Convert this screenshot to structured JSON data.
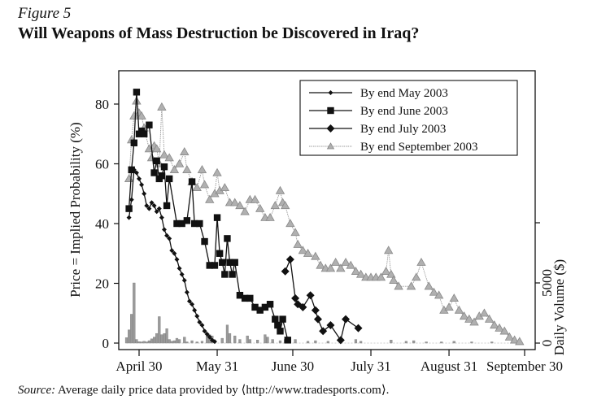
{
  "figure_label": "Figure 5",
  "title": "Will Weapons of Mass Destruction be Discovered in Iraq?",
  "source": {
    "prefix": "Source:",
    "text": " Average daily price data provided by ⟨http://www.tradesports.com⟩."
  },
  "chart_data": {
    "type": "line",
    "title": "Will Weapons of Mass Destruction be Discovered in Iraq?",
    "xlabel": "",
    "ylabel": "Price = Implied Probability (%)",
    "y2label": "Daily Volume ($)",
    "x_unit": "days since April 30, 2003",
    "x_ticks": [
      {
        "day": 0,
        "label": "April 30"
      },
      {
        "day": 31,
        "label": "May 31"
      },
      {
        "day": 61,
        "label": "June 30"
      },
      {
        "day": 92,
        "label": "July 31"
      },
      {
        "day": 123,
        "label": "August 31"
      },
      {
        "day": 153,
        "label": "September 30"
      }
    ],
    "xlim": [
      -8,
      158
    ],
    "y_ticks": [
      0,
      20,
      40,
      60,
      80
    ],
    "ylim": [
      -3,
      92
    ],
    "y2_ticks": [
      {
        "value": 0,
        "label": "0"
      },
      {
        "value": 5000,
        "label": "5000"
      }
    ],
    "y2lim": [
      -700,
      12500
    ],
    "grid": false,
    "legend_position": "top-right",
    "series": [
      {
        "name": "By end May 2003",
        "marker": "small-diamond",
        "color": "#111111",
        "points": [
          [
            -4,
            42
          ],
          [
            -3,
            48
          ],
          [
            -2,
            58
          ],
          [
            -1,
            57
          ],
          [
            0,
            55
          ],
          [
            1,
            53
          ],
          [
            2,
            50
          ],
          [
            3,
            46
          ],
          [
            4,
            45
          ],
          [
            5,
            47
          ],
          [
            6,
            46
          ],
          [
            7,
            44
          ],
          [
            8,
            45
          ],
          [
            9,
            42
          ],
          [
            10,
            38
          ],
          [
            11,
            36
          ],
          [
            12,
            35
          ],
          [
            13,
            31
          ],
          [
            14,
            30
          ],
          [
            15,
            28
          ],
          [
            16,
            25
          ],
          [
            17,
            23
          ],
          [
            18,
            21
          ],
          [
            19,
            17
          ],
          [
            20,
            14
          ],
          [
            21,
            13
          ],
          [
            22,
            11
          ],
          [
            23,
            9
          ],
          [
            24,
            7
          ],
          [
            25,
            6
          ],
          [
            26,
            4
          ],
          [
            27,
            3
          ],
          [
            28,
            2
          ],
          [
            29,
            1
          ],
          [
            30,
            0.5
          ]
        ]
      },
      {
        "name": "By end June 2003",
        "marker": "square",
        "color": "#111111",
        "points": [
          [
            -4,
            45
          ],
          [
            -3,
            58
          ],
          [
            -2,
            67
          ],
          [
            -1,
            84
          ],
          [
            0,
            70
          ],
          [
            1,
            71
          ],
          [
            2,
            70
          ],
          [
            4,
            73
          ],
          [
            6,
            57
          ],
          [
            7,
            61
          ],
          [
            8,
            55
          ],
          [
            9,
            56
          ],
          [
            10,
            59
          ],
          [
            11,
            46
          ],
          [
            12,
            55
          ],
          [
            15,
            40
          ],
          [
            17,
            40
          ],
          [
            19,
            41
          ],
          [
            21,
            54
          ],
          [
            22,
            40
          ],
          [
            24,
            40
          ],
          [
            26,
            34
          ],
          [
            28,
            26
          ],
          [
            30,
            26
          ],
          [
            31,
            42
          ],
          [
            32,
            30
          ],
          [
            33,
            27
          ],
          [
            34,
            23
          ],
          [
            35,
            35
          ],
          [
            36,
            27
          ],
          [
            37,
            23
          ],
          [
            38,
            27
          ],
          [
            40,
            16
          ],
          [
            42,
            15
          ],
          [
            44,
            15
          ],
          [
            46,
            12
          ],
          [
            48,
            11
          ],
          [
            50,
            12
          ],
          [
            52,
            13
          ],
          [
            54,
            8
          ],
          [
            55,
            6
          ],
          [
            56,
            4
          ],
          [
            57,
            8
          ],
          [
            59,
            1
          ]
        ]
      },
      {
        "name": "By end July 2003",
        "marker": "diamond",
        "color": "#111111",
        "points": [
          [
            58,
            24
          ],
          [
            60,
            28
          ],
          [
            62,
            15
          ],
          [
            63,
            13
          ],
          [
            65,
            12
          ],
          [
            68,
            16
          ],
          [
            70,
            11
          ],
          [
            71,
            8
          ],
          [
            73,
            4
          ],
          [
            76,
            6
          ],
          [
            80,
            1
          ],
          [
            82,
            8
          ],
          [
            87,
            5
          ]
        ]
      },
      {
        "name": "By end September 2003",
        "marker": "triangle",
        "color": "#9a9a9a",
        "points": [
          [
            -4,
            55
          ],
          [
            -3,
            68
          ],
          [
            -2,
            76
          ],
          [
            -1,
            81
          ],
          [
            0,
            77
          ],
          [
            1,
            76
          ],
          [
            2,
            72
          ],
          [
            4,
            65
          ],
          [
            5,
            62
          ],
          [
            6,
            66
          ],
          [
            7,
            65
          ],
          [
            8,
            60
          ],
          [
            9,
            79
          ],
          [
            10,
            63
          ],
          [
            12,
            62
          ],
          [
            14,
            58
          ],
          [
            16,
            60
          ],
          [
            18,
            64
          ],
          [
            19,
            58
          ],
          [
            21,
            54
          ],
          [
            23,
            52
          ],
          [
            25,
            58
          ],
          [
            26,
            53
          ],
          [
            28,
            48
          ],
          [
            30,
            50
          ],
          [
            31,
            57
          ],
          [
            32,
            51
          ],
          [
            34,
            52
          ],
          [
            36,
            47
          ],
          [
            38,
            47
          ],
          [
            40,
            46
          ],
          [
            42,
            44
          ],
          [
            44,
            48
          ],
          [
            46,
            48
          ],
          [
            48,
            45
          ],
          [
            50,
            42
          ],
          [
            52,
            42
          ],
          [
            54,
            46
          ],
          [
            56,
            51
          ],
          [
            57,
            47
          ],
          [
            58,
            46
          ],
          [
            60,
            40
          ],
          [
            62,
            37
          ],
          [
            63,
            33
          ],
          [
            65,
            31
          ],
          [
            67,
            30
          ],
          [
            70,
            29
          ],
          [
            72,
            26
          ],
          [
            74,
            25
          ],
          [
            76,
            25
          ],
          [
            78,
            27
          ],
          [
            80,
            25
          ],
          [
            82,
            27
          ],
          [
            84,
            26
          ],
          [
            86,
            24
          ],
          [
            88,
            23
          ],
          [
            90,
            22
          ],
          [
            92,
            22
          ],
          [
            94,
            22
          ],
          [
            96,
            22
          ],
          [
            98,
            24
          ],
          [
            99,
            31
          ],
          [
            100,
            23
          ],
          [
            101,
            21
          ],
          [
            103,
            19
          ],
          [
            108,
            19
          ],
          [
            110,
            22
          ],
          [
            112,
            27
          ],
          [
            115,
            19
          ],
          [
            117,
            17
          ],
          [
            119,
            16
          ],
          [
            121,
            11
          ],
          [
            123,
            12
          ],
          [
            125,
            15
          ],
          [
            127,
            11
          ],
          [
            129,
            9
          ],
          [
            131,
            8
          ],
          [
            133,
            7
          ],
          [
            135,
            9
          ],
          [
            137,
            10
          ],
          [
            139,
            8
          ],
          [
            141,
            6
          ],
          [
            143,
            5
          ],
          [
            145,
            4
          ],
          [
            147,
            2
          ],
          [
            149,
            1
          ],
          [
            151,
            0.5
          ]
        ]
      },
      {
        "name": "Daily Volume",
        "type": "bar",
        "axis": "right",
        "color": "#9a9a9a",
        "points": [
          [
            -5,
            450
          ],
          [
            -4,
            1100
          ],
          [
            -3,
            2400
          ],
          [
            -2,
            5000
          ],
          [
            -1,
            300
          ],
          [
            0,
            120
          ],
          [
            1,
            100
          ],
          [
            2,
            150
          ],
          [
            3,
            100
          ],
          [
            4,
            200
          ],
          [
            5,
            350
          ],
          [
            6,
            500
          ],
          [
            7,
            800
          ],
          [
            8,
            2200
          ],
          [
            9,
            700
          ],
          [
            10,
            800
          ],
          [
            11,
            1200
          ],
          [
            12,
            300
          ],
          [
            13,
            150
          ],
          [
            14,
            200
          ],
          [
            15,
            400
          ],
          [
            16,
            300
          ],
          [
            18,
            500
          ],
          [
            19,
            100
          ],
          [
            21,
            200
          ],
          [
            23,
            100
          ],
          [
            25,
            150
          ],
          [
            27,
            600
          ],
          [
            28,
            700
          ],
          [
            29,
            600
          ],
          [
            30,
            150
          ],
          [
            33,
            400
          ],
          [
            35,
            1500
          ],
          [
            36,
            800
          ],
          [
            38,
            600
          ],
          [
            40,
            300
          ],
          [
            43,
            600
          ],
          [
            44,
            300
          ],
          [
            47,
            250
          ],
          [
            50,
            700
          ],
          [
            51,
            500
          ],
          [
            53,
            300
          ],
          [
            56,
            200
          ],
          [
            58,
            300
          ],
          [
            62,
            300
          ],
          [
            67,
            150
          ],
          [
            70,
            200
          ],
          [
            75,
            150
          ],
          [
            80,
            150
          ],
          [
            86,
            300
          ],
          [
            88,
            150
          ],
          [
            100,
            250
          ],
          [
            106,
            150
          ],
          [
            109,
            200
          ],
          [
            114,
            100
          ],
          [
            120,
            100
          ],
          [
            125,
            150
          ],
          [
            132,
            100
          ],
          [
            140,
            100
          ]
        ]
      }
    ]
  }
}
